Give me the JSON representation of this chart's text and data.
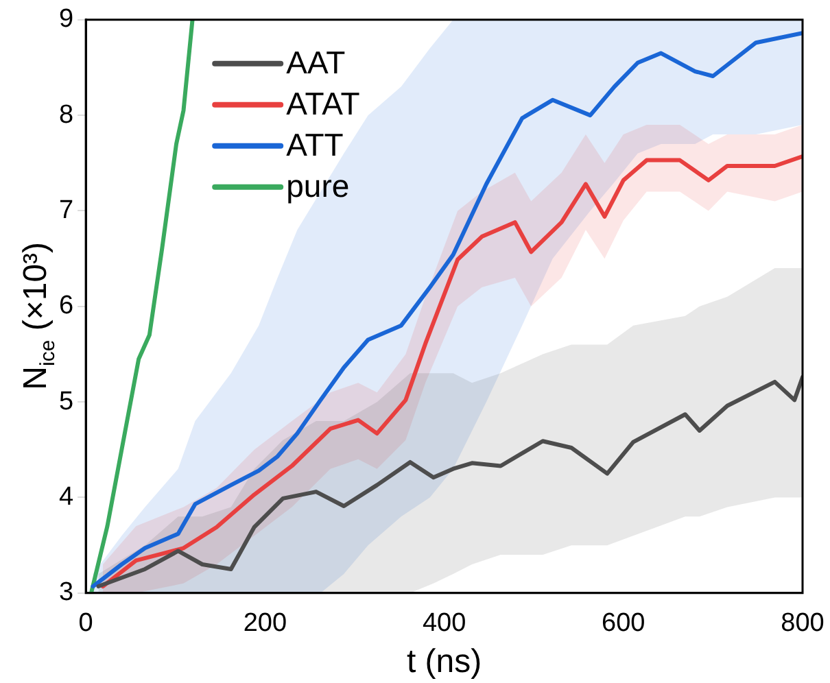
{
  "chart_data": {
    "type": "line",
    "xlabel": "t (ns)",
    "ylabel": "N$_{ice}$ (×10³)",
    "xlim": [
      0,
      800
    ],
    "xticks": [
      0,
      200,
      400,
      600,
      800
    ],
    "ylim": [
      3,
      9
    ],
    "yticks": [
      3,
      4,
      5,
      6,
      7,
      8,
      9
    ],
    "legend": "top left",
    "grid": false,
    "marker": "none",
    "line_style": "solid",
    "series": [
      {
        "name": "AAT",
        "color": "#4d4d4d",
        "x": [
          14,
          66,
          103,
          130,
          162,
          188,
          220,
          257,
          288,
          325,
          362,
          388,
          410,
          431,
          463,
          510,
          542,
          582,
          611,
          669,
          685,
          716,
          769,
          791,
          800
        ],
        "values": [
          3.07,
          3.25,
          3.44,
          3.3,
          3.25,
          3.69,
          3.99,
          4.06,
          3.91,
          4.13,
          4.37,
          4.21,
          4.3,
          4.36,
          4.33,
          4.59,
          4.52,
          4.25,
          4.58,
          4.87,
          4.7,
          4.96,
          5.21,
          5.02,
          5.26
        ],
        "lower": [
          3,
          3,
          3,
          3,
          3,
          3,
          3,
          3,
          3,
          3,
          3,
          3.1,
          3.2,
          3.3,
          3.4,
          3.4,
          3.5,
          3.5,
          3.6,
          3.8,
          3.8,
          3.9,
          4.0,
          4.0,
          4.0
        ],
        "upper": [
          3.2,
          3.5,
          3.8,
          3.8,
          3.9,
          4.3,
          4.6,
          4.8,
          4.8,
          5.0,
          5.3,
          5.3,
          5.3,
          5.2,
          5.3,
          5.5,
          5.6,
          5.6,
          5.8,
          5.9,
          6.0,
          6.1,
          6.4,
          6.4,
          6.4
        ]
      },
      {
        "name": "ATAT",
        "color": "#e8403f",
        "x": [
          19,
          56,
          109,
          146,
          188,
          230,
          273,
          304,
          325,
          357,
          379,
          415,
          442,
          479,
          497,
          531,
          558,
          579,
          600,
          626,
          663,
          695,
          716,
          769,
          800
        ],
        "values": [
          3.07,
          3.34,
          3.47,
          3.69,
          4.03,
          4.33,
          4.72,
          4.81,
          4.67,
          5.02,
          5.61,
          6.49,
          6.73,
          6.88,
          6.57,
          6.88,
          7.28,
          6.94,
          7.32,
          7.53,
          7.53,
          7.32,
          7.47,
          7.47,
          7.57
        ],
        "lower": [
          3,
          3,
          3.1,
          3.3,
          3.6,
          3.9,
          4.3,
          4.4,
          4.3,
          4.6,
          5.2,
          6.0,
          6.2,
          6.3,
          6.0,
          6.3,
          6.8,
          6.5,
          6.9,
          7.2,
          7.2,
          7.0,
          7.2,
          7.1,
          7.2
        ],
        "upper": [
          3.3,
          3.7,
          3.9,
          4.1,
          4.5,
          4.8,
          5.1,
          5.2,
          5.1,
          5.5,
          6.1,
          7.0,
          7.2,
          7.4,
          7.1,
          7.4,
          7.8,
          7.5,
          7.8,
          7.9,
          7.9,
          7.7,
          7.8,
          7.8,
          7.9
        ]
      },
      {
        "name": "ATT",
        "color": "#1a66d6",
        "x": [
          8,
          40,
          66,
          103,
          122,
          162,
          193,
          214,
          236,
          262,
          288,
          315,
          352,
          384,
          410,
          447,
          487,
          521,
          563,
          590,
          616,
          642,
          680,
          700,
          748,
          800
        ],
        "values": [
          3.07,
          3.3,
          3.47,
          3.62,
          3.93,
          4.13,
          4.28,
          4.43,
          4.67,
          5.02,
          5.36,
          5.65,
          5.8,
          6.2,
          6.54,
          7.28,
          7.97,
          8.16,
          8.0,
          8.3,
          8.55,
          8.65,
          8.46,
          8.41,
          8.76,
          8.86
        ],
        "lower": [
          3,
          3,
          3,
          3,
          3,
          3,
          3,
          3,
          3,
          3,
          3.2,
          3.5,
          3.8,
          4.0,
          4.3,
          5.0,
          5.8,
          6.5,
          7.0,
          7.3,
          7.6,
          7.7,
          7.7,
          7.8,
          7.8,
          7.9
        ],
        "upper": [
          3.2,
          3.6,
          3.9,
          4.3,
          4.8,
          5.3,
          5.8,
          6.3,
          6.8,
          7.2,
          7.6,
          8.0,
          8.3,
          8.7,
          9,
          9,
          9,
          9,
          9,
          9,
          9,
          9,
          9,
          9,
          9,
          9
        ]
      },
      {
        "name": "pure",
        "color": "#3aaa5e",
        "x": [
          6,
          24,
          40,
          59,
          71,
          85,
          101,
          109,
          119
        ],
        "values": [
          3,
          3.7,
          4.5,
          5.45,
          5.7,
          6.6,
          7.7,
          8.05,
          9
        ]
      }
    ]
  }
}
